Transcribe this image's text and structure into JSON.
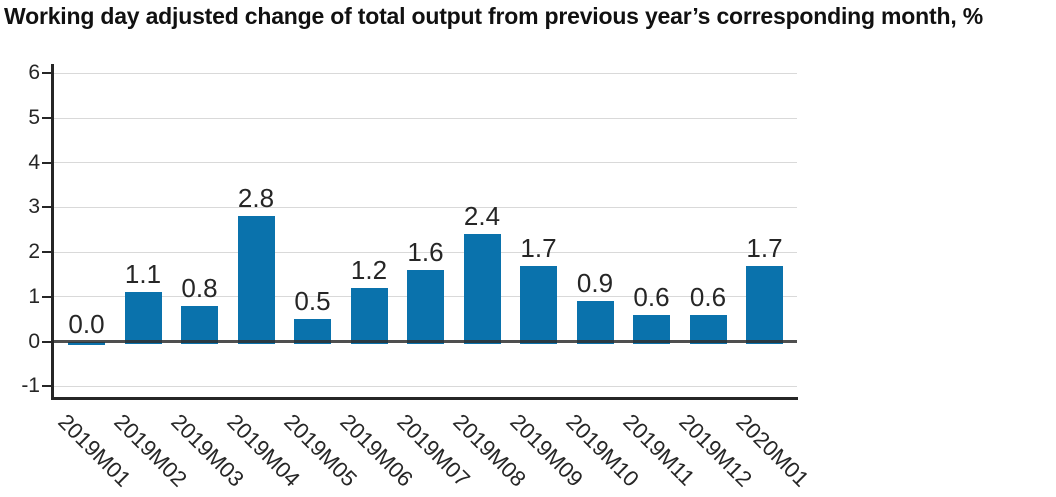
{
  "chart_data": {
    "type": "bar",
    "title": "Working day adjusted change of total output from previous year’s corresponding month, %",
    "categories": [
      "2019M01",
      "2019M02",
      "2019M03",
      "2019M04",
      "2019M05",
      "2019M06",
      "2019M07",
      "2019M08",
      "2019M09",
      "2019M10",
      "2019M11",
      "2019M12",
      "2020M01"
    ],
    "values": [
      0.0,
      1.1,
      0.8,
      2.8,
      0.5,
      1.2,
      1.6,
      2.4,
      1.7,
      0.9,
      0.6,
      0.6,
      1.7
    ],
    "data_labels": [
      "0.0",
      "1.1",
      "0.8",
      "2.8",
      "0.5",
      "1.2",
      "1.6",
      "2.4",
      "1.7",
      "0.9",
      "0.6",
      "0.6",
      "1.7"
    ],
    "xlabel": "",
    "ylabel": "",
    "ylim": [
      -1,
      6
    ],
    "yticks": [
      6,
      5,
      4,
      3,
      2,
      1,
      0,
      -1
    ],
    "grid": true,
    "legend": "none",
    "bar_color": "#0a72ac",
    "colors": {
      "grid_line": "#d9d9d9",
      "zero_line": "#4d4d4d",
      "axis_line": "#262626",
      "tick_text": "#262626",
      "value_label_text": "#262626",
      "title_text": "#111111",
      "background": "#ffffff"
    }
  }
}
